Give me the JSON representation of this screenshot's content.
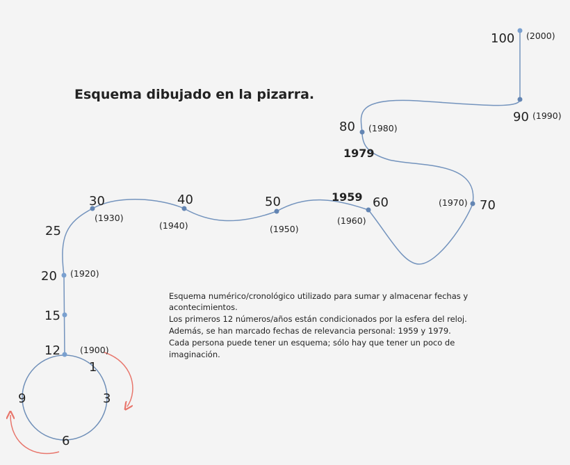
{
  "title": "Esquema dibujado en la pizarra.",
  "clock": [
    "12",
    "1",
    "3",
    "6",
    "9"
  ],
  "nodes": [
    {
      "label": "12",
      "year": "(1900)"
    },
    {
      "label": "15"
    },
    {
      "label": "20",
      "year": "(1920)"
    },
    {
      "label": "25"
    },
    {
      "label": "30",
      "year": "(1930)"
    },
    {
      "label": "40",
      "year": "(1940)"
    },
    {
      "label": "50",
      "year": "(1950)"
    },
    {
      "label": "60",
      "year": "(1960)"
    },
    {
      "label": "70",
      "year": "(1970)"
    },
    {
      "label": "80",
      "year": "(1980)"
    },
    {
      "label": "90",
      "year": "(1990)"
    },
    {
      "label": "100",
      "year": "(2000)"
    }
  ],
  "highlights": [
    "1959",
    "1979"
  ],
  "description": [
    "Esquema numérico/cronológico utilizado para sumar y almacenar fechas y",
    "acontecimientos.",
    "Los primeros 12 números/años están condicionados por la esfera del reloj.",
    "Además, se han marcado fechas de relevancia personal: 1959 y 1979.",
    "Cada persona puede tener un esquema; sólo hay que tener un poco de",
    "imaginación."
  ]
}
